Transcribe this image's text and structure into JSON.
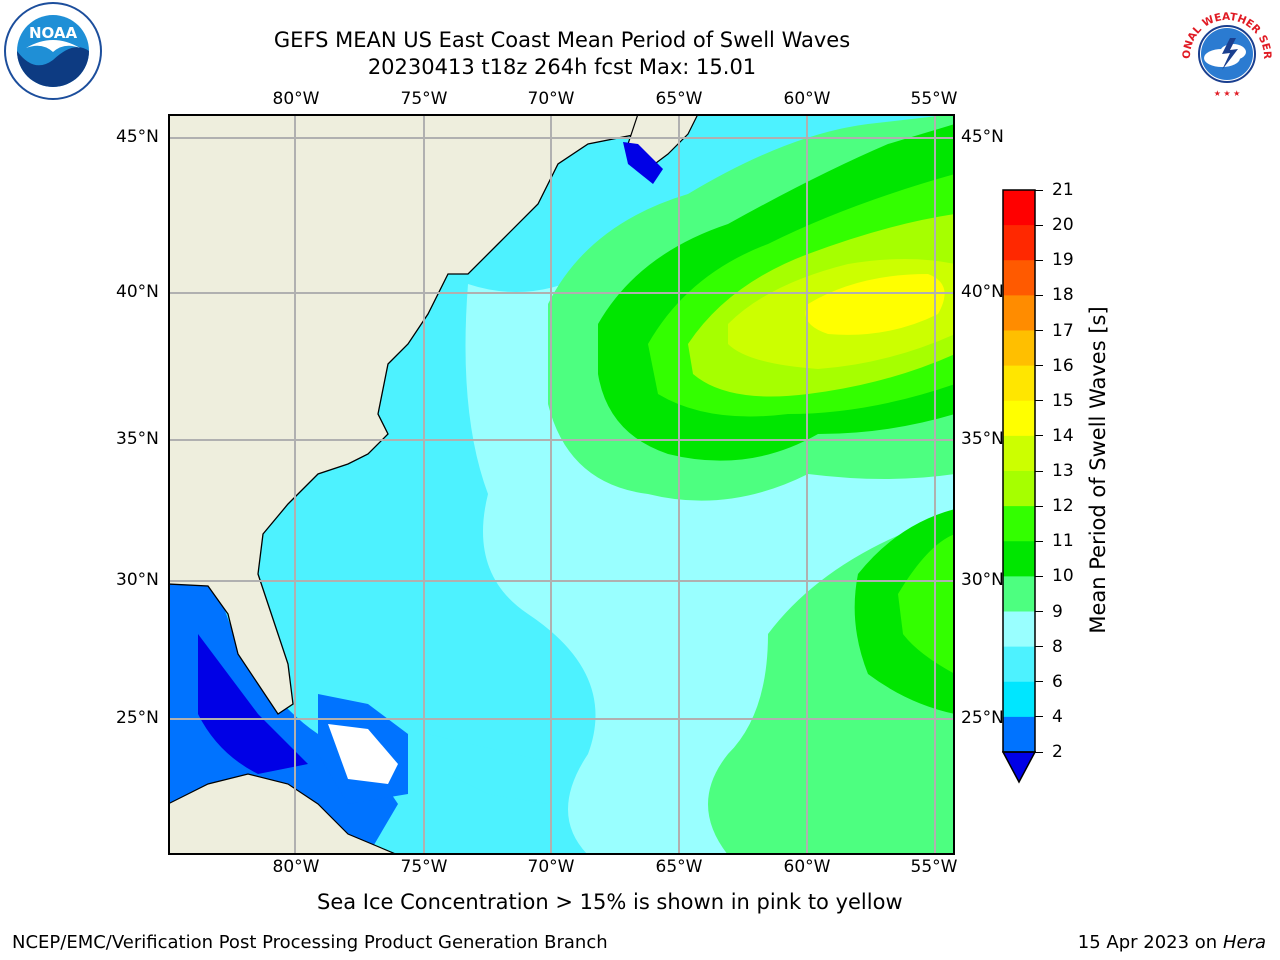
{
  "title": {
    "line1": "GEFS MEAN US East Coast Mean Period of Swell Waves",
    "line2": "20230413 t18z 264h fcst   Max: 15.01"
  },
  "logos": {
    "left": {
      "icon": "noaa-logo",
      "text": "NOAA"
    },
    "right": {
      "icon": "nws-logo",
      "text": "NATIONAL WEATHER SERVICE"
    }
  },
  "map": {
    "lon_labels": [
      "80°W",
      "75°W",
      "70°W",
      "65°W",
      "60°W",
      "55°W"
    ],
    "lat_labels": [
      "45°N",
      "40°N",
      "35°N",
      "30°N",
      "25°N"
    ],
    "colors": {
      "land": "#eeeedd",
      "coast": "#000000",
      "grid": "#b0b0b0"
    }
  },
  "colorbar": {
    "label": "Mean Period of Swell Waves [s]",
    "ticks": [
      "2",
      "4",
      "6",
      "8",
      "9",
      "10",
      "11",
      "12",
      "13",
      "14",
      "15",
      "16",
      "17",
      "18",
      "19",
      "20",
      "21"
    ],
    "colors": [
      "#0000e6",
      "#0073ff",
      "#00e6ff",
      "#4df2ff",
      "#99ffff",
      "#4dff80",
      "#00e600",
      "#33ff00",
      "#a6ff00",
      "#ccff00",
      "#ffff00",
      "#ffe600",
      "#ffbf00",
      "#ff8c00",
      "#ff5a00",
      "#ff2800",
      "#ff0000"
    ]
  },
  "notes": {
    "sea_ice": "Sea Ice Concentration > 15% is shown in pink to yellow",
    "branch": "NCEP/EMC/Verification Post Processing Product Generation Branch",
    "date": "15 Apr 2023 on ",
    "machine": "Hera"
  }
}
